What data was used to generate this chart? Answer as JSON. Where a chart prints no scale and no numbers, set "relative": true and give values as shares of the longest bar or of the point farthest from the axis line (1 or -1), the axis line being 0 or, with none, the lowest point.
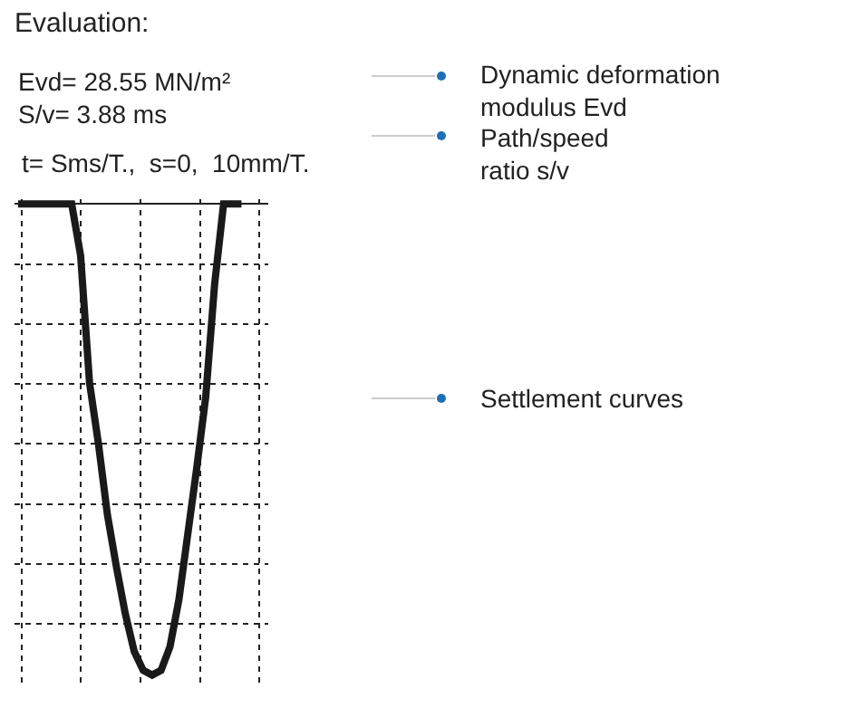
{
  "chart_data": {
    "type": "line",
    "title": "Evaluation:",
    "relative": true,
    "grid": true,
    "marker": "none",
    "line_style": "solid",
    "categories": [
      null,
      null,
      null,
      null,
      null,
      null,
      null,
      null,
      null,
      null,
      null,
      null,
      null,
      null,
      null,
      null,
      null,
      null,
      null,
      null,
      null,
      null,
      null,
      null,
      null,
      null
    ],
    "series": [
      {
        "color": "#1a1a1a",
        "values": [
          0,
          0,
          0,
          0,
          0,
          0,
          0,
          -0.11,
          -0.38,
          -0.51,
          -0.66,
          -0.77,
          -0.87,
          -0.95,
          -0.99,
          -1,
          -0.99,
          -0.94,
          -0.84,
          -0.7,
          -0.56,
          -0.41,
          -0.17,
          0,
          0,
          0
        ]
      }
    ],
    "annotations": [
      "Evd= 28.55 MN/m²",
      "S/v= 3.88 ms",
      "t= Sms/T.,  s=0,  10mm/T.",
      "Dynamic deformation\nmodulus Evd",
      "Path/speed\nratio s/v",
      "Settlement curves"
    ]
  }
}
